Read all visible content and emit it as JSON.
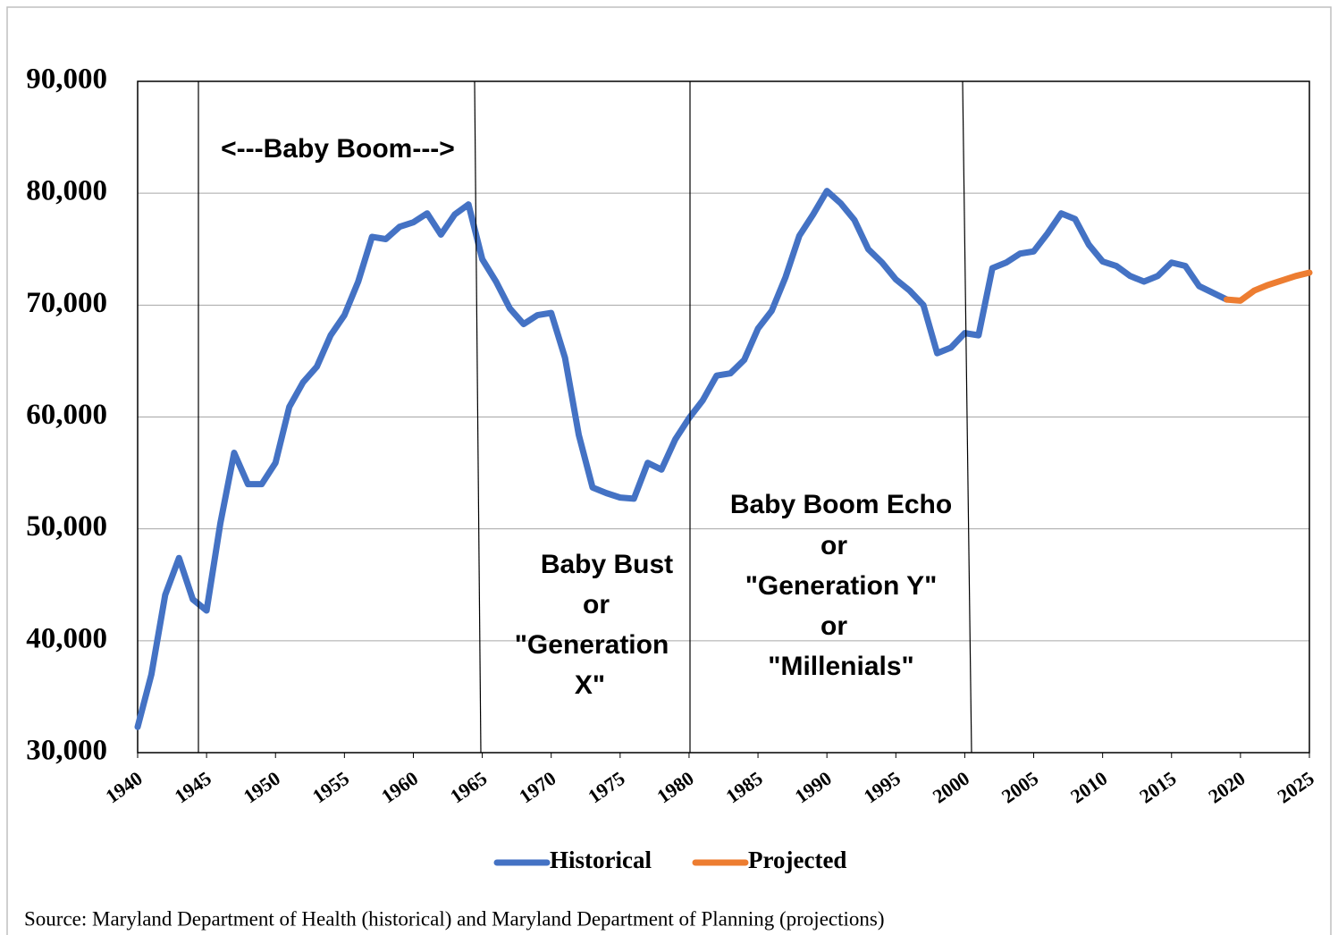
{
  "chart_data": {
    "type": "line",
    "x": [
      1940,
      1941,
      1942,
      1943,
      1944,
      1945,
      1946,
      1947,
      1948,
      1949,
      1950,
      1951,
      1952,
      1953,
      1954,
      1955,
      1956,
      1957,
      1958,
      1959,
      1960,
      1961,
      1962,
      1963,
      1964,
      1965,
      1966,
      1967,
      1968,
      1969,
      1970,
      1971,
      1972,
      1973,
      1974,
      1975,
      1976,
      1977,
      1978,
      1979,
      1980,
      1981,
      1982,
      1983,
      1984,
      1985,
      1986,
      1987,
      1988,
      1989,
      1990,
      1991,
      1992,
      1993,
      1994,
      1995,
      1996,
      1997,
      1998,
      1999,
      2000,
      2001,
      2002,
      2003,
      2004,
      2005,
      2006,
      2007,
      2008,
      2009,
      2010,
      2011,
      2012,
      2013,
      2014,
      2015,
      2016,
      2017,
      2018,
      2019,
      2020,
      2021,
      2022,
      2023,
      2024,
      2025
    ],
    "series": [
      {
        "name": "Historical",
        "color": "#4472c4",
        "values": [
          32300,
          37000,
          44100,
          47400,
          43700,
          42700,
          50500,
          56800,
          54000,
          54000,
          55900,
          60900,
          63100,
          64500,
          67300,
          69100,
          72100,
          76100,
          75900,
          77000,
          77400,
          78200,
          76300,
          78100,
          79000,
          74100,
          72100,
          69700,
          68300,
          69100,
          69300,
          65300,
          58400,
          53700,
          53200,
          52800,
          52700,
          55900,
          55300,
          58000,
          59900,
          61500,
          63700,
          63900,
          65100,
          67900,
          69500,
          72500,
          76200,
          78100,
          80200,
          79100,
          77600,
          75000,
          73800,
          72300,
          71300,
          70000,
          65700,
          66200,
          67500,
          67300,
          73300,
          73800,
          74600,
          74800,
          76400,
          78200,
          77700,
          75400,
          73900,
          73500,
          72600,
          72100,
          72600,
          73800,
          73500,
          71700,
          71100,
          70500,
          null,
          null,
          null,
          null,
          null,
          null
        ]
      },
      {
        "name": "Projected",
        "color": "#ed7d31",
        "values": [
          null,
          null,
          null,
          null,
          null,
          null,
          null,
          null,
          null,
          null,
          null,
          null,
          null,
          null,
          null,
          null,
          null,
          null,
          null,
          null,
          null,
          null,
          null,
          null,
          null,
          null,
          null,
          null,
          null,
          null,
          null,
          null,
          null,
          null,
          null,
          null,
          null,
          null,
          null,
          null,
          null,
          null,
          null,
          null,
          null,
          null,
          null,
          null,
          null,
          null,
          null,
          null,
          null,
          null,
          null,
          null,
          null,
          null,
          null,
          null,
          null,
          null,
          null,
          null,
          null,
          null,
          null,
          null,
          null,
          null,
          null,
          null,
          null,
          null,
          null,
          null,
          null,
          null,
          null,
          70500,
          70400,
          71300,
          71800,
          72200,
          72600,
          72900
        ]
      }
    ],
    "xlim": [
      1940,
      2025
    ],
    "xticks": [
      1940,
      1945,
      1950,
      1955,
      1960,
      1965,
      1970,
      1975,
      1980,
      1985,
      1990,
      1995,
      2000,
      2005,
      2010,
      2015,
      2020,
      2025
    ],
    "ylim": [
      30000,
      90000
    ],
    "yticks": [
      {
        "value": 30000,
        "label": "30,000"
      },
      {
        "value": 40000,
        "label": "40,000"
      },
      {
        "value": 50000,
        "label": "50,000"
      },
      {
        "value": 60000,
        "label": "60,000"
      },
      {
        "value": 70000,
        "label": "70,000"
      },
      {
        "value": 80000,
        "label": "80,000"
      },
      {
        "value": 90000,
        "label": "90,000"
      }
    ],
    "grid": true,
    "legend": "bottom",
    "annotations": [
      [
        "<---Baby Boom--->"
      ],
      [
        "Baby Bust",
        "or",
        "\"Generation",
        "X\""
      ],
      [
        "Baby Boom Echo",
        "or",
        "\"Generation Y\"",
        "or",
        "\"Millenials\""
      ]
    ],
    "source": "Source: Maryland Department of Health (historical) and Maryland Department of Planning (projections)"
  }
}
